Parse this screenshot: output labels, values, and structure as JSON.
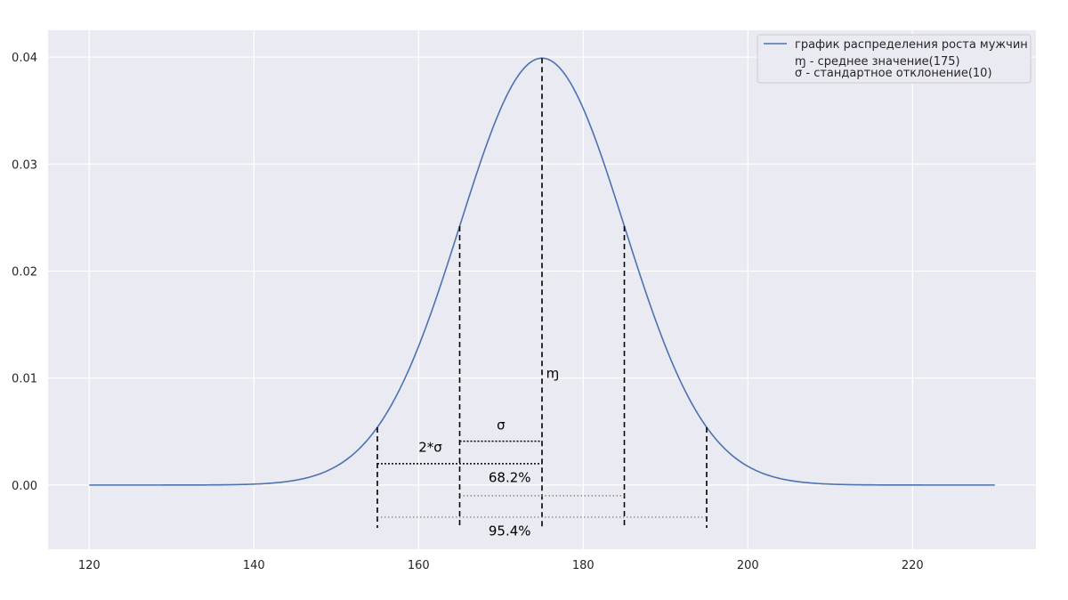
{
  "chart_data": {
    "type": "line",
    "title": "",
    "xlabel": "",
    "ylabel": "",
    "xlim": [
      115,
      235
    ],
    "ylim": [
      -0.006,
      0.0425
    ],
    "grid": true,
    "background": "#eaeaf2",
    "line_color": "#4c72b0",
    "legend_position": "top-right",
    "distribution": {
      "mean": 175,
      "std": 10
    },
    "x_ticks": [
      120,
      140,
      160,
      180,
      200,
      220
    ],
    "x_tick_labels": [
      "120",
      "140",
      "160",
      "180",
      "200",
      "220"
    ],
    "y_ticks": [
      0.0,
      0.01,
      0.02,
      0.03,
      0.04
    ],
    "y_tick_labels": [
      "0.00",
      "0.01",
      "0.02",
      "0.03",
      "0.04"
    ],
    "series": [
      {
        "name": "график распределения роста мужчин",
        "x": [
          120,
          130,
          140,
          145,
          150,
          155,
          160,
          165,
          170,
          175,
          180,
          185,
          190,
          195,
          200,
          205,
          210,
          220,
          230
        ],
        "y": [
          0.0,
          0.0,
          0.0001,
          0.0004,
          0.0018,
          0.0054,
          0.013,
          0.0242,
          0.0352,
          0.0399,
          0.0352,
          0.0242,
          0.013,
          0.0054,
          0.0018,
          0.0004,
          0.0001,
          0.0,
          0.0
        ]
      }
    ],
    "legend_extra": [
      "ɱ - среднее значение(175)",
      "σ - стандартное отклонение(10)"
    ],
    "vlines": [
      {
        "x": 175,
        "y_from": -0.004,
        "y_to": 0.0399
      },
      {
        "x": 165,
        "y_from": -0.004,
        "y_to": 0.0242
      },
      {
        "x": 185,
        "y_from": -0.004,
        "y_to": 0.0242
      },
      {
        "x": 155,
        "y_from": -0.004,
        "y_to": 0.0054
      },
      {
        "x": 195,
        "y_from": -0.004,
        "y_to": 0.0054
      }
    ],
    "hlines": [
      {
        "x_from": 165,
        "x_to": 175,
        "y": 0.0041,
        "style": "dotted-black"
      },
      {
        "x_from": 155,
        "x_to": 175,
        "y": 0.002,
        "style": "dotted-black"
      },
      {
        "x_from": 165,
        "x_to": 185,
        "y": -0.001,
        "style": "dotted-gray"
      },
      {
        "x_from": 155,
        "x_to": 195,
        "y": -0.003,
        "style": "dotted-gray"
      }
    ],
    "annotations": [
      {
        "text": "ɱ",
        "x": 175.5,
        "y": 0.01
      },
      {
        "text": "σ",
        "x": 169.5,
        "y": 0.0052
      },
      {
        "text": "2*σ",
        "x": 160,
        "y": 0.0031
      },
      {
        "text": "68.2%",
        "x": 168.5,
        "y": 0.0003
      },
      {
        "text": "95.4%",
        "x": 168.5,
        "y": -0.0047
      }
    ]
  }
}
